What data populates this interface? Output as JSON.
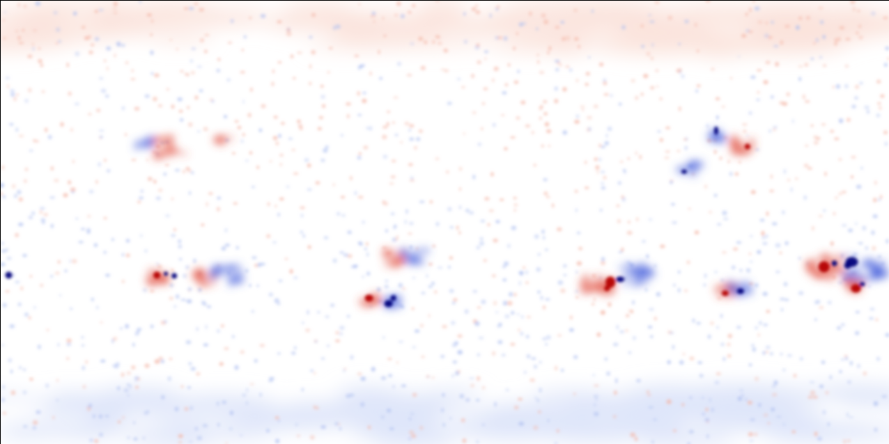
{
  "image": {
    "kind": "magnetogram-synoptic-map",
    "colors": {
      "background": "#ffffff",
      "positive_strong": "#b40000",
      "positive_weak": "#f4b6a6",
      "negative_strong": "#00007a",
      "negative_weak": "#aebff0",
      "polar_positive_haze": "#fbe3dc",
      "polar_negative_haze": "#dfe6fa"
    }
  }
}
